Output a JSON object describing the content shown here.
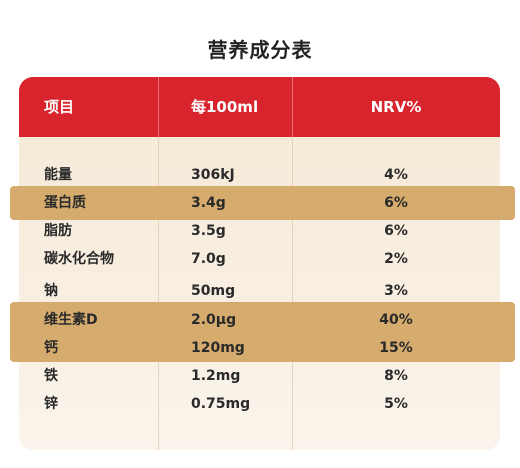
{
  "title": "营养成分表",
  "table": {
    "headers": [
      "项目",
      "每100ml",
      "NRV%"
    ],
    "rows": [
      {
        "name": "能量",
        "amount": "306kJ",
        "nrv": "4%",
        "highlighted": false
      },
      {
        "name": "蛋白质",
        "amount": "3.4g",
        "nrv": "6%",
        "highlighted": true
      },
      {
        "name": "脂肪",
        "amount": "3.5g",
        "nrv": "6%",
        "highlighted": false
      },
      {
        "name": "碳水化合物",
        "amount": "7.0g",
        "nrv": "2%",
        "highlighted": false
      },
      {
        "name": "钠",
        "amount": "50mg",
        "nrv": "3%",
        "highlighted": false
      },
      {
        "name": "维生素D",
        "amount": "2.0μg",
        "nrv": "40%",
        "highlighted": true
      },
      {
        "name": "钙",
        "amount": "120mg",
        "nrv": "15%",
        "highlighted": true
      },
      {
        "name": "铁",
        "amount": "1.2mg",
        "nrv": "8%",
        "highlighted": false
      },
      {
        "name": "锌",
        "amount": "0.75mg",
        "nrv": "5%",
        "highlighted": false
      }
    ]
  },
  "colors": {
    "header_bg": "#d8242c",
    "highlight_band": "#d6ac6e",
    "card_bg": "#f6e9d6"
  }
}
